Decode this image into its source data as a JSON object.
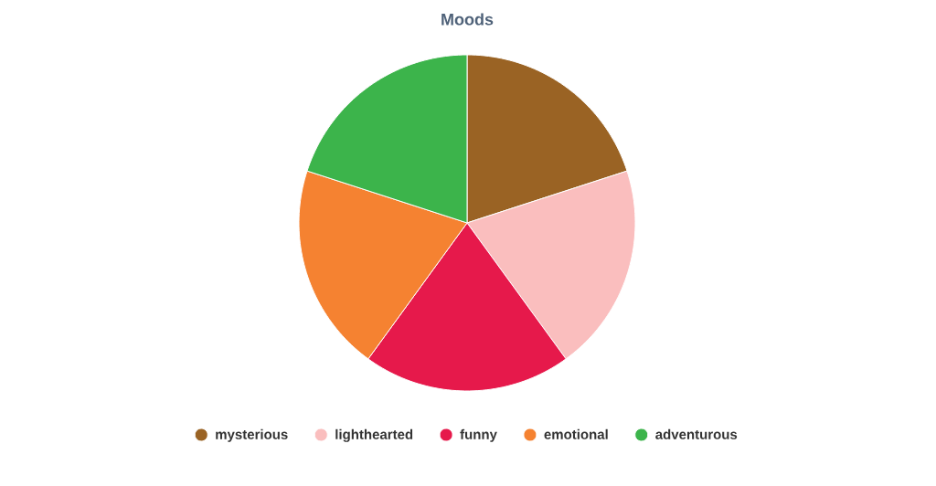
{
  "chart_data": {
    "type": "pie",
    "title": "Moods",
    "categories": [
      "mysterious",
      "lighthearted",
      "funny",
      "emotional",
      "adventurous"
    ],
    "values": [
      20,
      20,
      20,
      20,
      20
    ],
    "colors": [
      "#9a6324",
      "#fabebe",
      "#e6194b",
      "#f58231",
      "#3cb44b"
    ],
    "legend": "bottom"
  }
}
